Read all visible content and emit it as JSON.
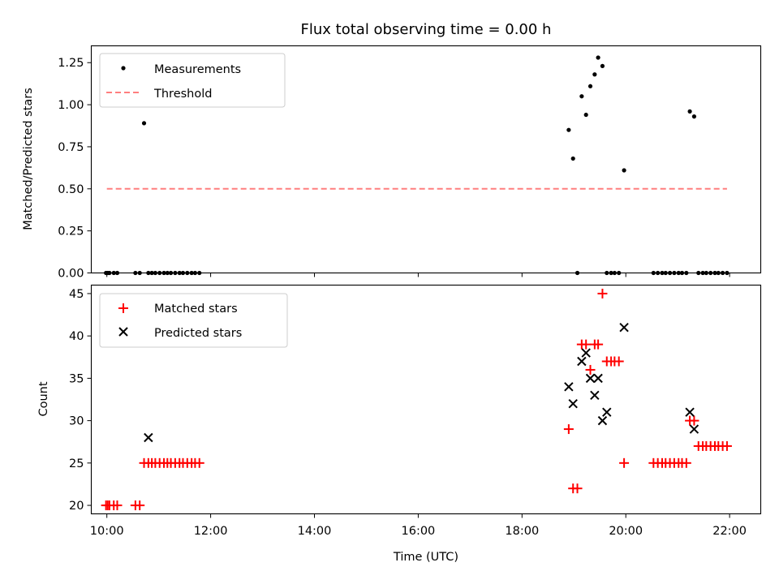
{
  "title": "Flux total observing time = 0.00 h",
  "xlabel": "Time (UTC)",
  "x_tick_labels": [
    "10:00",
    "12:00",
    "14:00",
    "16:00",
    "18:00",
    "20:00",
    "22:00"
  ],
  "colors": {
    "measurement": "#000000",
    "threshold": "#ff7f7f",
    "matched": "#ff0000",
    "predicted": "#000000"
  },
  "chart_data": [
    {
      "type": "scatter",
      "ylabel": "Matched/Predicted stars",
      "xlim": [
        "09:42",
        "22:36"
      ],
      "ylim": [
        0,
        1.35
      ],
      "y_ticks": [
        "0.00",
        "0.25",
        "0.50",
        "0.75",
        "1.00",
        "1.25"
      ],
      "legend": {
        "placement": "top-left",
        "items": [
          "Measurements",
          "Threshold"
        ]
      },
      "threshold": {
        "name": "Threshold",
        "value": 0.5,
        "x_range": [
          "10:00",
          "21:57"
        ]
      },
      "series": [
        {
          "name": "Measurements",
          "x": [
            "09:59",
            "10:01",
            "10:03",
            "10:08",
            "10:12",
            "10:33",
            "10:38",
            "10:43",
            "10:48",
            "10:52",
            "10:56",
            "11:01",
            "11:06",
            "11:10",
            "11:14",
            "11:19",
            "11:24",
            "11:28",
            "11:33",
            "11:38",
            "11:42",
            "11:47",
            "18:54",
            "18:59",
            "19:04",
            "19:09",
            "19:14",
            "19:19",
            "19:24",
            "19:28",
            "19:33",
            "19:38",
            "19:43",
            "19:47",
            "19:52",
            "19:58",
            "20:32",
            "20:37",
            "20:42",
            "20:46",
            "20:51",
            "20:56",
            "21:01",
            "21:05",
            "21:10",
            "21:14",
            "21:19",
            "21:24",
            "21:29",
            "21:33",
            "21:38",
            "21:43",
            "21:47",
            "21:52",
            "21:57"
          ],
          "y": [
            0,
            0,
            0,
            0,
            0,
            0,
            0,
            0.89,
            0,
            0,
            0,
            0,
            0,
            0,
            0,
            0,
            0,
            0,
            0,
            0,
            0,
            0,
            0.85,
            0.68,
            0,
            1.05,
            0.94,
            1.11,
            1.18,
            1.28,
            1.23,
            0,
            0,
            0,
            0,
            0.61,
            0,
            0,
            0,
            0,
            0,
            0,
            0,
            0,
            0,
            0.96,
            0.93,
            0,
            0,
            0,
            0,
            0,
            0,
            0,
            0
          ]
        }
      ]
    },
    {
      "type": "scatter",
      "ylabel": "Count",
      "xlim": [
        "09:42",
        "22:36"
      ],
      "ylim": [
        19,
        46
      ],
      "y_ticks": [
        "20",
        "25",
        "30",
        "35",
        "40",
        "45"
      ],
      "legend": {
        "placement": "top-left",
        "items": [
          "Matched stars",
          "Predicted stars"
        ]
      },
      "series": [
        {
          "name": "Matched stars",
          "x": [
            "09:59",
            "10:01",
            "10:03",
            "10:08",
            "10:12",
            "10:33",
            "10:38",
            "10:43",
            "10:48",
            "10:52",
            "10:56",
            "11:01",
            "11:06",
            "11:10",
            "11:14",
            "11:19",
            "11:24",
            "11:28",
            "11:33",
            "11:38",
            "11:42",
            "11:47",
            "18:54",
            "18:59",
            "19:04",
            "19:09",
            "19:14",
            "19:19",
            "19:24",
            "19:28",
            "19:33",
            "19:38",
            "19:43",
            "19:47",
            "19:52",
            "19:58",
            "20:32",
            "20:37",
            "20:42",
            "20:46",
            "20:51",
            "20:56",
            "21:01",
            "21:05",
            "21:10",
            "21:14",
            "21:19",
            "21:24",
            "21:29",
            "21:33",
            "21:38",
            "21:43",
            "21:47",
            "21:52",
            "21:57"
          ],
          "y": [
            20,
            20,
            20,
            20,
            20,
            20,
            20,
            25,
            25,
            25,
            25,
            25,
            25,
            25,
            25,
            25,
            25,
            25,
            25,
            25,
            25,
            25,
            29,
            22,
            22,
            39,
            39,
            36,
            39,
            39,
            45,
            37,
            37,
            37,
            37,
            25,
            25,
            25,
            25,
            25,
            25,
            25,
            25,
            25,
            25,
            30,
            30,
            27,
            27,
            27,
            27,
            27,
            27,
            27,
            27
          ]
        },
        {
          "name": "Predicted stars",
          "x": [
            "10:48",
            "18:54",
            "18:59",
            "19:09",
            "19:14",
            "19:19",
            "19:24",
            "19:28",
            "19:33",
            "19:38",
            "19:58",
            "21:14",
            "21:19"
          ],
          "y": [
            28,
            34,
            32,
            37,
            38,
            35,
            33,
            35,
            30,
            31,
            41,
            31,
            29
          ]
        }
      ]
    }
  ]
}
